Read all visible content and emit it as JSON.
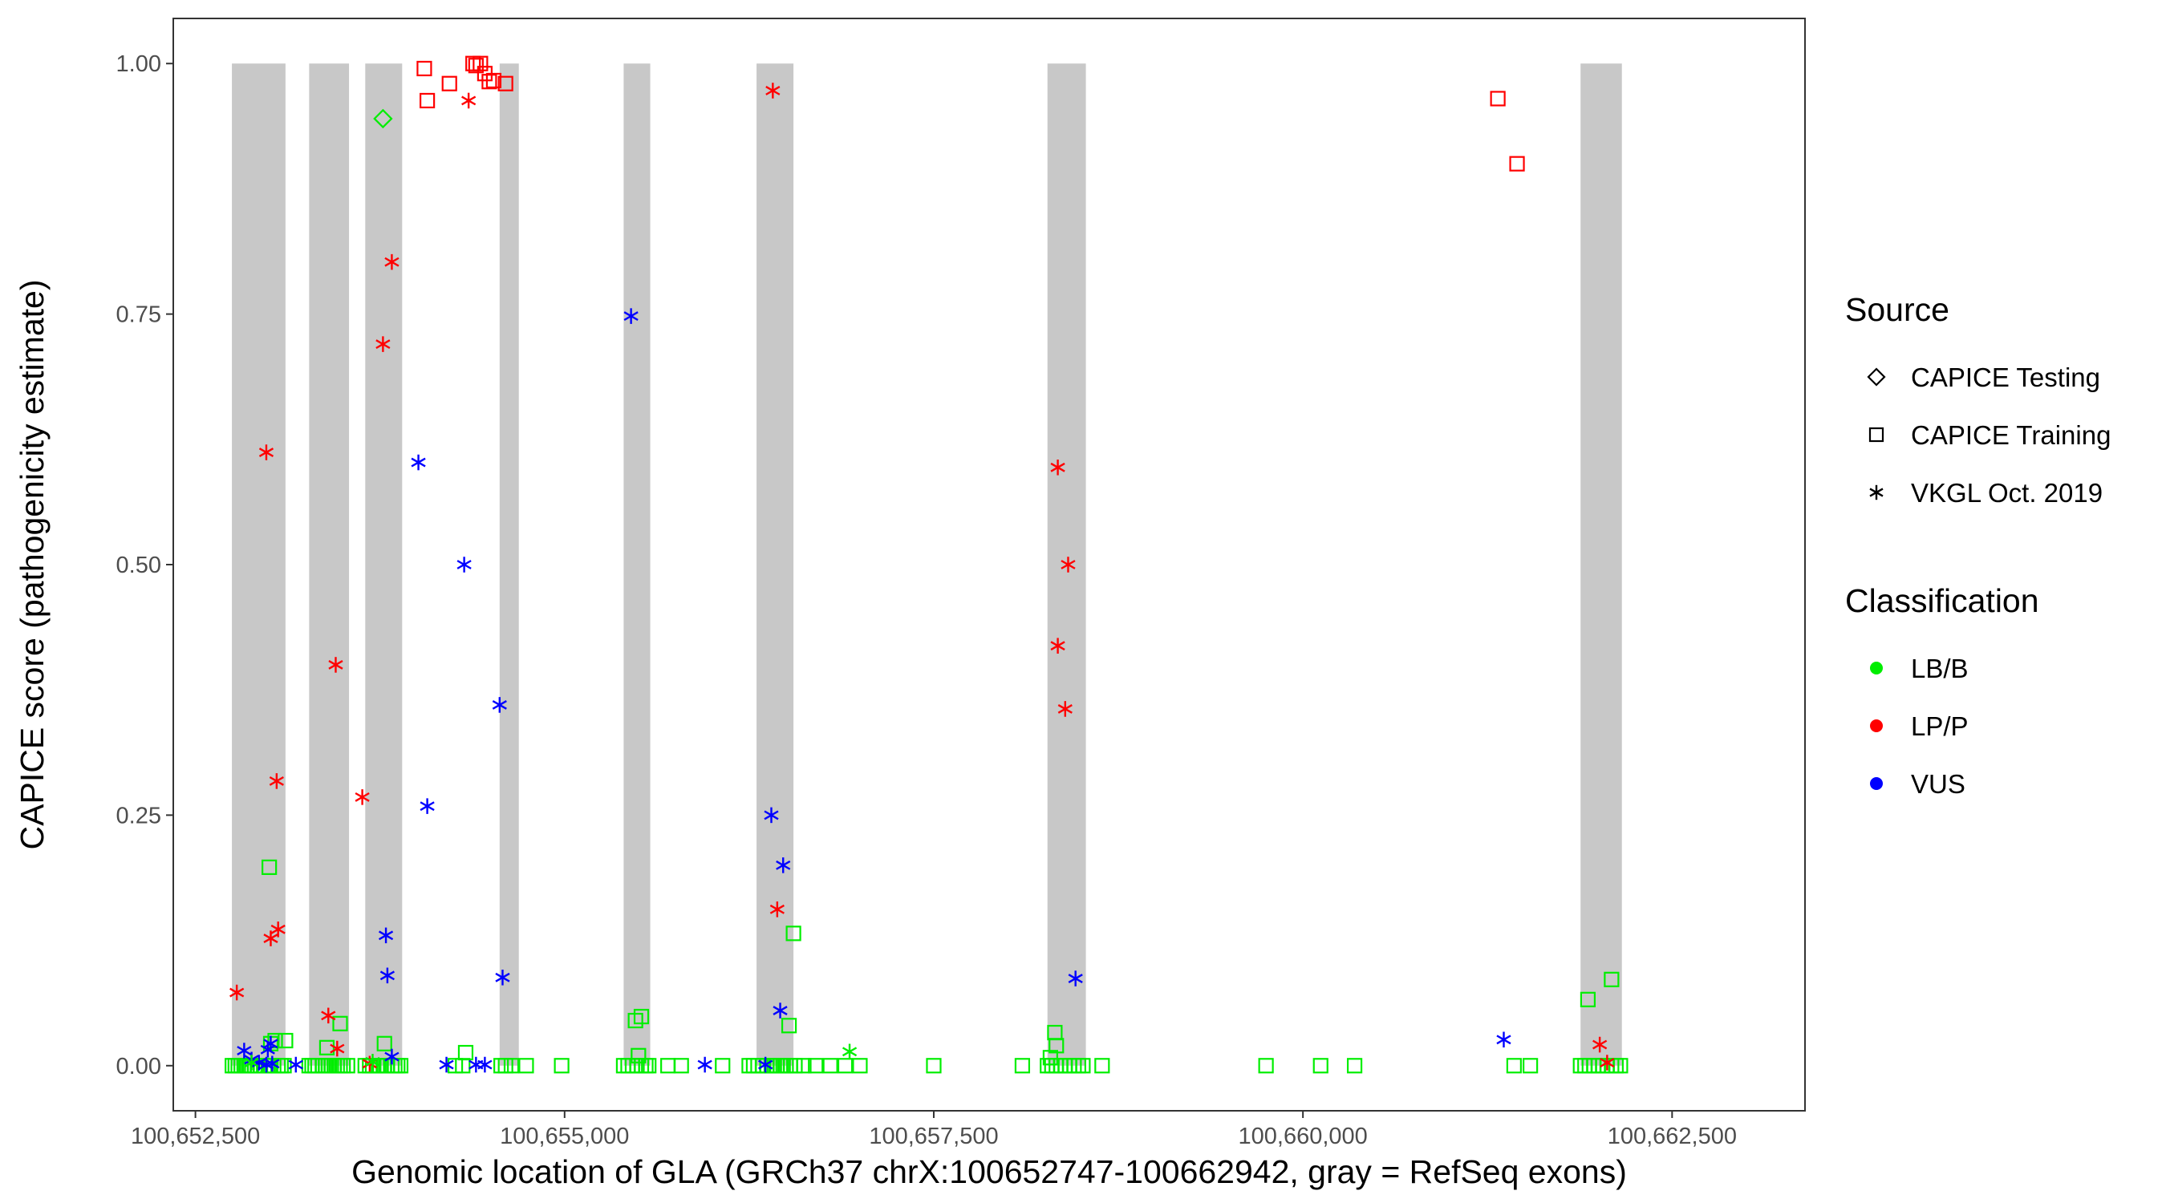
{
  "chart_data": {
    "type": "scatter",
    "title": "",
    "xlabel": "Genomic location of GLA (GRCh37 chrX:100652747-100662942, gray = RefSeq exons)",
    "ylabel": "CAPICE score (pathogenicity estimate)",
    "xlim": [
      100652350,
      100663400
    ],
    "ylim": [
      -0.045,
      1.045
    ],
    "x_ticks": [
      100652500,
      100655000,
      100657500,
      100660000,
      100662500
    ],
    "x_tick_labels": [
      "100,652,500",
      "100,655,000",
      "100,657,500",
      "100,660,000",
      "100,662,500"
    ],
    "y_ticks": [
      0,
      0.25,
      0.5,
      0.75,
      1.0
    ],
    "y_tick_labels": [
      "0.00",
      "0.25",
      "0.50",
      "0.75",
      "1.00"
    ],
    "grid": false,
    "legend_position": "right",
    "exon_color": "#c8c8c8",
    "exons": [
      [
        100652747,
        100653110
      ],
      [
        100653270,
        100653540
      ],
      [
        100653650,
        100653900
      ],
      [
        100654560,
        100654690
      ],
      [
        100655400,
        100655580
      ],
      [
        100656300,
        100656550
      ],
      [
        100658270,
        100658530
      ],
      [
        100661880,
        100662160
      ]
    ],
    "legends": [
      {
        "title": "Source",
        "entries": [
          {
            "label": "CAPICE Testing",
            "shape": "diamond"
          },
          {
            "label": "CAPICE Training",
            "shape": "square"
          },
          {
            "label": "VKGL Oct. 2019",
            "shape": "asterisk"
          }
        ]
      },
      {
        "title": "Classification",
        "entries": [
          {
            "label": "LB/B",
            "color": "#00ee00"
          },
          {
            "label": "LP/P",
            "color": "#ff0000"
          },
          {
            "label": "VUS",
            "color": "#0000ff"
          }
        ]
      }
    ],
    "series": [
      {
        "source": "CAPICE Testing",
        "classification": "LB/B",
        "shape": "diamond",
        "color": "#00ee00",
        "x": [
          100653770
        ],
        "y": [
          0.945
        ]
      },
      {
        "source": "CAPICE Training",
        "classification": "LP/P",
        "shape": "square",
        "color": "#ff0000",
        "x": [
          100654050,
          100654070,
          100654220,
          100654380,
          100654400,
          100654430,
          100654460,
          100654490,
          100654520,
          100654600,
          100661320,
          100661450
        ],
        "y": [
          0.995,
          0.963,
          0.98,
          1.0,
          0.998,
          1.0,
          0.99,
          0.982,
          0.983,
          0.98,
          0.965,
          0.9
        ],
        "note": "approximate positions"
      },
      {
        "source": "CAPICE Training",
        "classification": "LB/B",
        "shape": "square",
        "color": "#00ee00",
        "x": [
          100652750,
          100652770,
          100652790,
          100652810,
          100652830,
          100652850,
          100652870,
          100652900,
          100652920,
          100652940,
          100652970,
          100653000,
          100653010,
          100653030,
          100653060,
          100653080,
          100653100,
          100653270,
          100653290,
          100653310,
          100653330,
          100653360,
          100653380,
          100653400,
          100653420,
          100653440,
          100653460,
          100653480,
          100653500,
          100653530,
          100653650,
          100653680,
          100653700,
          100653730,
          100653750,
          100653780,
          100653800,
          100653830,
          100653850,
          100653870,
          100653890,
          100654260,
          100654310,
          100654570,
          100654600,
          100654640,
          100654740,
          100654980,
          100655400,
          100655430,
          100655460,
          100655490,
          100655520,
          100655550,
          100655570,
          100655700,
          100655790,
          100656070,
          100656250,
          100656280,
          100656310,
          100656340,
          100656370,
          100656400,
          100656420,
          100656440,
          100656460,
          100656480,
          100656500,
          100656530,
          100656560,
          100656620,
          100656700,
          100656800,
          100656900,
          100657000,
          100657500,
          100658100,
          100658270,
          100658300,
          100658330,
          100658360,
          100658390,
          100658420,
          100658450,
          100658480,
          100658510,
          100658640,
          100659750,
          100660120,
          100660350,
          100661430,
          100661540,
          100661880,
          100661910,
          100661940,
          100661970,
          100662000,
          100662030,
          100662060,
          100662090,
          100662120,
          100662150,
          100653000,
          100653040,
          100653110,
          100653390,
          100653480,
          100653780,
          100654330,
          100655480,
          100655520,
          100656520,
          100658320,
          100658330,
          100661930,
          100662090,
          100653010,
          100656550,
          100655500,
          100658290
        ],
        "y": [
          0,
          0,
          0,
          0,
          0,
          0,
          0,
          0,
          0,
          0,
          0,
          0,
          0,
          0,
          0,
          0,
          0,
          0,
          0,
          0,
          0,
          0,
          0,
          0,
          0,
          0,
          0,
          0,
          0,
          0,
          0,
          0,
          0,
          0,
          0,
          0,
          0,
          0,
          0,
          0,
          0,
          0,
          0,
          0,
          0,
          0,
          0,
          0,
          0,
          0,
          0,
          0,
          0,
          0,
          0,
          0,
          0,
          0,
          0,
          0,
          0,
          0,
          0,
          0,
          0,
          0,
          0,
          0,
          0,
          0,
          0,
          0,
          0,
          0,
          0,
          0,
          0,
          0,
          0,
          0,
          0,
          0,
          0,
          0,
          0,
          0,
          0,
          0,
          0,
          0,
          0,
          0,
          0,
          0,
          0,
          0,
          0,
          0,
          0,
          0,
          0,
          0,
          0,
          0.198,
          0.025,
          0.025,
          0.018,
          0.042,
          0.022,
          0.013,
          0.045,
          0.049,
          0.04,
          0.033,
          0.02,
          0.066,
          0.086,
          0.022,
          0.132,
          0.01,
          0.008
        ],
        "note": "approximate positions"
      },
      {
        "source": "VKGL Oct. 2019",
        "classification": "LP/P",
        "shape": "asterisk",
        "color": "#ff0000",
        "x": [
          100652780,
          100652980,
          100653010,
          100653050,
          100653060,
          100653400,
          100653450,
          100653460,
          100653630,
          100653680,
          100653770,
          100653830,
          100654350,
          100656410,
          100656440,
          100658340,
          100658340,
          100658390,
          100658410,
          100662010,
          100662060
        ],
        "y": [
          0.073,
          0.612,
          0.127,
          0.284,
          0.136,
          0.05,
          0.4,
          0.017,
          0.268,
          0.002,
          0.72,
          0.802,
          0.963,
          0.973,
          0.156,
          0.597,
          0.419,
          0.356,
          0.5,
          0.021,
          0.003
        ],
        "note": "approximate positions"
      },
      {
        "source": "VKGL Oct. 2019",
        "classification": "VUS",
        "shape": "asterisk",
        "color": "#0000ff",
        "x": [
          100652830,
          100652880,
          100652930,
          100652980,
          100652990,
          100653010,
          100653020,
          100653180,
          100653790,
          100653800,
          100653830,
          100654010,
          100654070,
          100654200,
          100654320,
          100654400,
          100654460,
          100654560,
          100654580,
          100655450,
          100655950,
          100656360,
          100656400,
          100656460,
          100656480,
          100658460,
          100661360
        ],
        "y": [
          0.015,
          0.006,
          0.003,
          0.001,
          0.016,
          0.022,
          0.002,
          0.001,
          0.13,
          0.09,
          0.009,
          0.602,
          0.259,
          0.001,
          0.5,
          0.001,
          0.001,
          0.36,
          0.088,
          0.748,
          0.001,
          0.001,
          0.25,
          0.055,
          0.2,
          0.087,
          0.026
        ],
        "note": "approximate positions"
      },
      {
        "source": "VKGL Oct. 2019",
        "classification": "LB/B",
        "shape": "asterisk",
        "color": "#00ee00",
        "x": [
          100656930,
          100653700,
          100652880
        ],
        "y": [
          0.014,
          0.004,
          0.003
        ]
      }
    ]
  }
}
